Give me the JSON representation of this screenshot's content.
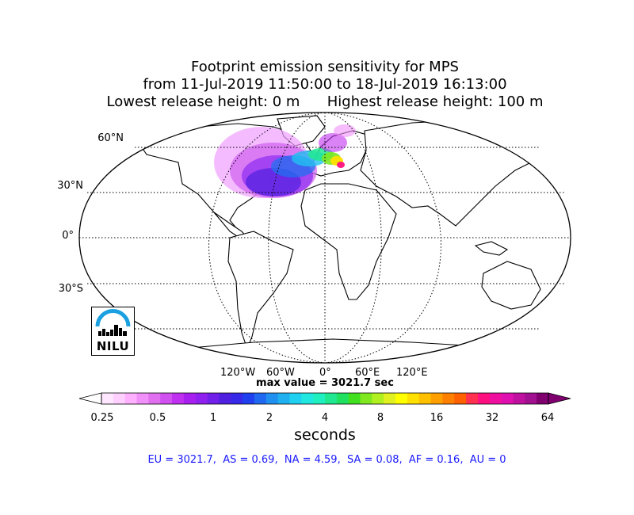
{
  "title": {
    "line1": "Footprint emission sensitivity for MPS",
    "line2": "from 11-Jul-2019 11:50:00 to 18-Jul-2019 16:13:00",
    "line3": "Lowest release height: 0 m      Highest release height: 100 m"
  },
  "map": {
    "projection": "Robinson",
    "lat_labels": [
      "60°N",
      "30°N",
      "0°",
      "30°S"
    ],
    "lon_labels": [
      "120°W",
      "60°W",
      "0°",
      "60°E",
      "120°E"
    ],
    "gridlines": "dotted",
    "plume_region": "North Atlantic to Europe"
  },
  "logo": {
    "text": "NILU"
  },
  "max_value": "max value = 3021.7 sec",
  "colorbar": {
    "ticks": [
      "0.25",
      "0.5",
      "1",
      "2",
      "4",
      "8",
      "16",
      "32",
      "64"
    ],
    "units": "seconds",
    "scale": "log",
    "colors": [
      "#ffe8ff",
      "#ffd0ff",
      "#ffb0ff",
      "#f090f8",
      "#e070f0",
      "#d050f0",
      "#c030f0",
      "#a820f0",
      "#9020f0",
      "#7020e8",
      "#5020e0",
      "#3828e8",
      "#2040f0",
      "#2068f0",
      "#2090f0",
      "#20b0f0",
      "#20d0f0",
      "#20e8e0",
      "#20f0c0",
      "#20e890",
      "#20e060",
      "#40e020",
      "#80e820",
      "#b0f020",
      "#e0f020",
      "#ffff00",
      "#ffe000",
      "#ffc000",
      "#ffa000",
      "#ff8000",
      "#ff6000",
      "#ff3050",
      "#ff1080",
      "#f010a0",
      "#e010b0",
      "#c010a0",
      "#a01090",
      "#800070"
    ]
  },
  "regions": "EU = 3021.7,  AS = 0.69,  NA = 4.59,  SA = 0.08,  AF = 0.16,  AU = 0"
}
